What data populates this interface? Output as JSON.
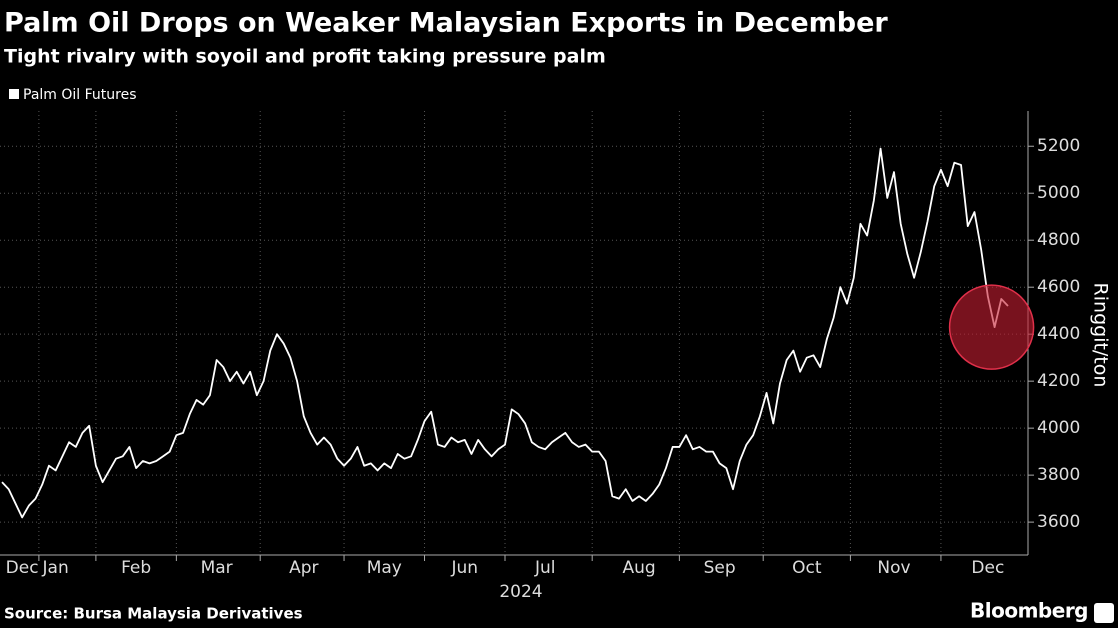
{
  "chart_data": {
    "type": "line",
    "title": "Palm Oil Drops on Weaker Malaysian Exports in December",
    "subtitle": "Tight rivalry with soyoil and profit taking pressure palm",
    "ylabel": "Ringgit/ton",
    "xlabel": "2024",
    "source": "Source: Bursa Malaysia Derivatives",
    "brand": "Bloomberg",
    "ylim": [
      3460,
      5350
    ],
    "yticks": [
      3600,
      3800,
      4000,
      4200,
      4400,
      4600,
      4800,
      5000,
      5200
    ],
    "grid": true,
    "legend": "top-left",
    "categories": [
      null,
      null,
      null,
      "Dec",
      null,
      null,
      null,
      null,
      "Jan",
      null,
      null,
      null,
      null,
      null,
      null,
      null,
      null,
      null,
      null,
      null,
      "Feb",
      null,
      null,
      null,
      null,
      null,
      null,
      null,
      null,
      null,
      null,
      null,
      "Mar",
      null,
      null,
      null,
      null,
      null,
      null,
      null,
      null,
      null,
      null,
      null,
      null,
      "Apr",
      null,
      null,
      null,
      null,
      null,
      null,
      null,
      null,
      null,
      null,
      null,
      "May",
      null,
      null,
      null,
      null,
      null,
      null,
      null,
      null,
      null,
      null,
      null,
      "Jun",
      null,
      null,
      null,
      null,
      null,
      null,
      null,
      null,
      null,
      null,
      null,
      "Jul",
      null,
      null,
      null,
      null,
      null,
      null,
      null,
      null,
      null,
      null,
      null,
      null,
      null,
      "Aug",
      null,
      null,
      null,
      null,
      null,
      null,
      null,
      null,
      null,
      null,
      null,
      "Sep",
      null,
      null,
      null,
      null,
      null,
      null,
      null,
      null,
      null,
      null,
      null,
      null,
      "Oct",
      null,
      null,
      null,
      null,
      null,
      null,
      null,
      null,
      null,
      null,
      null,
      null,
      "Nov",
      null,
      null,
      null,
      null,
      null,
      null,
      null,
      null,
      null,
      null,
      null,
      null,
      null,
      "Dec",
      null,
      null,
      null
    ],
    "series": [
      {
        "name": "Palm Oil Futures",
        "color": "#ffffff",
        "values": [
          3770,
          3740,
          3680,
          3620,
          3670,
          3700,
          3760,
          3840,
          3820,
          3880,
          3940,
          3920,
          3980,
          4010,
          3840,
          3770,
          3820,
          3870,
          3880,
          3920,
          3830,
          3860,
          3850,
          3860,
          3880,
          3900,
          3970,
          3980,
          4060,
          4120,
          4100,
          4140,
          4290,
          4260,
          4200,
          4240,
          4190,
          4240,
          4140,
          4200,
          4330,
          4400,
          4360,
          4300,
          4200,
          4050,
          3980,
          3930,
          3960,
          3930,
          3870,
          3840,
          3870,
          3920,
          3840,
          3850,
          3820,
          3850,
          3830,
          3890,
          3870,
          3880,
          3950,
          4030,
          4070,
          3930,
          3920,
          3960,
          3940,
          3950,
          3890,
          3950,
          3910,
          3880,
          3910,
          3930,
          4080,
          4060,
          4020,
          3940,
          3920,
          3910,
          3940,
          3960,
          3980,
          3940,
          3920,
          3930,
          3900,
          3900,
          3860,
          3710,
          3700,
          3740,
          3690,
          3710,
          3690,
          3720,
          3760,
          3830,
          3920,
          3920,
          3970,
          3910,
          3920,
          3900,
          3900,
          3850,
          3830,
          3740,
          3860,
          3930,
          3970,
          4050,
          4150,
          4020,
          4190,
          4290,
          4330,
          4240,
          4300,
          4310,
          4260,
          4380,
          4470,
          4600,
          4530,
          4640,
          4870,
          4820,
          4970,
          5190,
          4980,
          5090,
          4870,
          4740,
          4640,
          4750,
          4880,
          5030,
          5100,
          5030,
          5130,
          5120,
          4860,
          4920,
          4760,
          4560,
          4430,
          4550,
          4520
        ]
      }
    ]
  }
}
